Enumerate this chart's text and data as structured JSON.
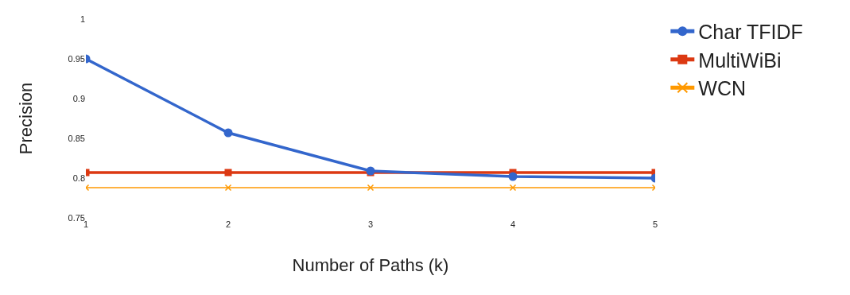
{
  "chart_data": {
    "type": "line",
    "xlabel": "Number of Paths (k)",
    "ylabel": "Precision",
    "x": [
      1,
      2,
      3,
      4,
      5
    ],
    "series": [
      {
        "name": "Char TFIDF",
        "color": "#3366cc",
        "marker": "circle",
        "values": [
          0.95,
          0.857,
          0.809,
          0.802,
          0.8
        ]
      },
      {
        "name": "MultiWiBi",
        "color": "#dc3912",
        "marker": "square",
        "values": [
          0.807,
          0.807,
          0.807,
          0.807,
          0.807
        ]
      },
      {
        "name": "WCN",
        "color": "#ff9900",
        "marker": "cross",
        "values": [
          0.788,
          0.788,
          0.788,
          0.788,
          0.788
        ]
      }
    ],
    "xlim": [
      1,
      5
    ],
    "xticks": [
      1,
      2,
      3,
      4,
      5
    ],
    "ylim": [
      0.75,
      1
    ],
    "yticks": [
      0.75,
      0.8,
      0.85,
      0.9,
      0.95,
      1
    ],
    "grid": false,
    "legend": "top right"
  }
}
